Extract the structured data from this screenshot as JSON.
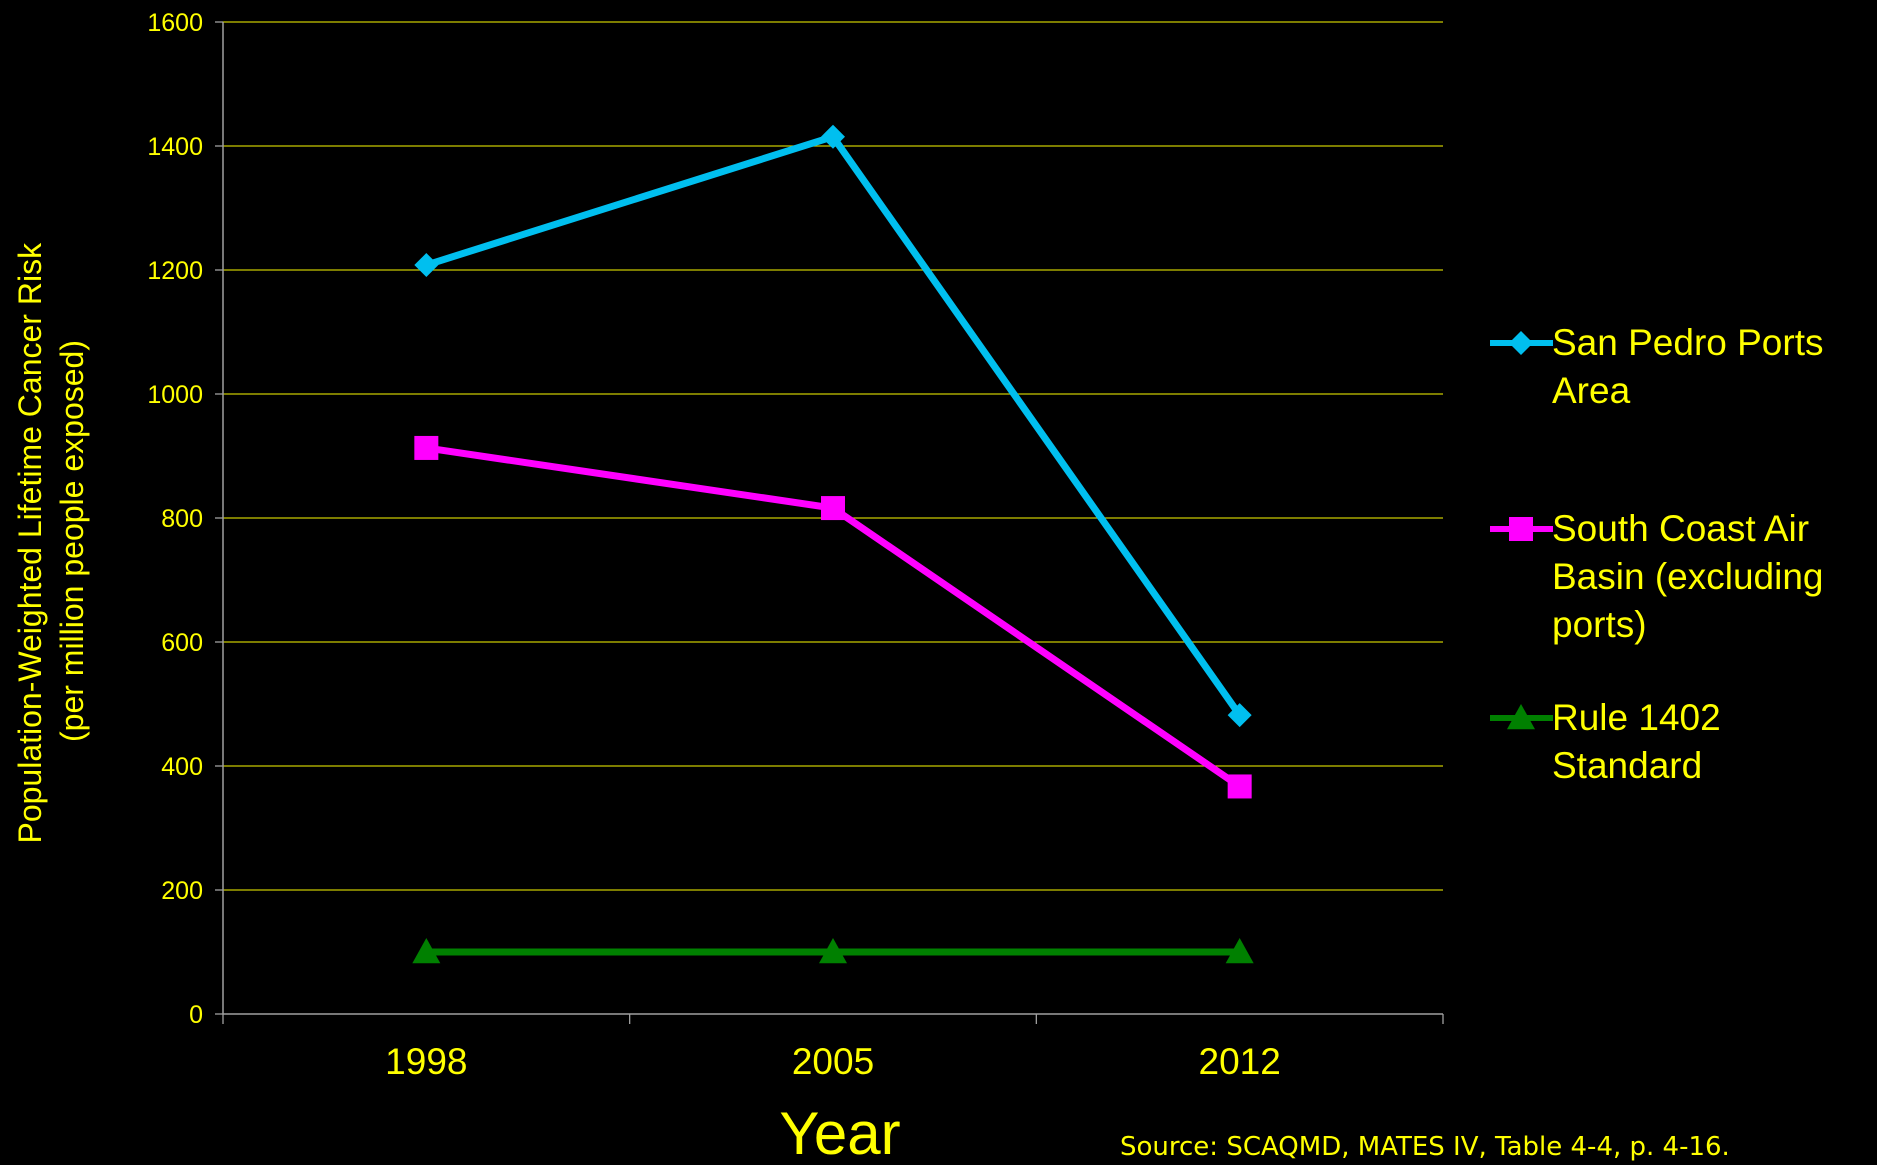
{
  "chart_data": {
    "type": "line",
    "title": "",
    "xlabel": "Year",
    "ylabel_lines": [
      "Population-Weighted Lifetime Cancer Risk",
      "(per million people exposed)"
    ],
    "categories": [
      "1998",
      "2005",
      "2012"
    ],
    "ylim": [
      0,
      1600
    ],
    "yticks": [
      0,
      200,
      400,
      600,
      800,
      1000,
      1200,
      1400,
      1600
    ],
    "grid": true,
    "legend_position": "right",
    "series": [
      {
        "name": "San Pedro Ports Area",
        "name_lines": [
          "San Pedro Ports",
          "Area"
        ],
        "values": [
          1208,
          1415,
          482
        ],
        "color": "#00BFEF",
        "marker": "diamond"
      },
      {
        "name": "South Coast Air Basin (excluding ports)",
        "name_lines": [
          "South Coast Air",
          "Basin (excluding",
          "ports)"
        ],
        "values": [
          913,
          816,
          367
        ],
        "color": "#FF00FF",
        "marker": "square"
      },
      {
        "name": "Rule 1402 Standard",
        "name_lines": [
          "Rule 1402",
          "Standard"
        ],
        "values": [
          100,
          100,
          100
        ],
        "color": "#008000",
        "marker": "triangle"
      }
    ],
    "annotations": [
      "Source:  SCAQMD, MATES IV, Table 4-4, p. 4-16."
    ]
  },
  "colors": {
    "background": "#000000",
    "text": "#FFFF00",
    "grid": "#C8C800",
    "axis": "#A0A0A0"
  }
}
